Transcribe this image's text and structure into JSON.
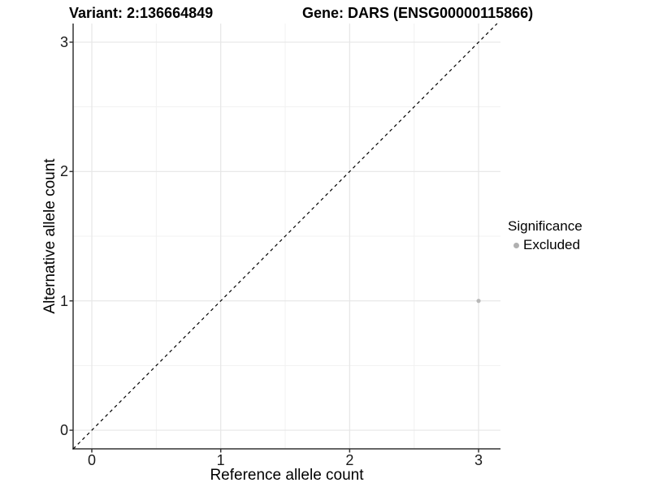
{
  "header": {
    "variant_title": "Variant: 2:136664849",
    "gene_title": "Gene: DARS (ENSG00000115866)"
  },
  "colors": {
    "background": "#ffffff",
    "grid_major": "#e6e6e6",
    "grid_minor": "#f1f1f1",
    "axis_line": "#333333",
    "tick_mark": "#333333",
    "tick_label": "#1a1a1a",
    "identity_line": "#000000",
    "point": "#b8b8b8"
  },
  "chart_data": {
    "type": "scatter",
    "title": "",
    "xlabel": "Reference allele count",
    "ylabel": "Alternative allele count",
    "x_ticks": [
      0,
      1,
      2,
      3
    ],
    "y_ticks": [
      0,
      1,
      2,
      3
    ],
    "x_minor_ticks": [
      0.5,
      1.5,
      2.5
    ],
    "y_minor_ticks": [
      0.5,
      1.5,
      2.5
    ],
    "xlim": [
      -0.145,
      3.17
    ],
    "ylim": [
      -0.144,
      3.144
    ],
    "grid": true,
    "series": [
      {
        "name": "Excluded",
        "color": "#b8b8b8",
        "points": [
          {
            "x": 3,
            "y": 1
          }
        ]
      }
    ],
    "identity_line": {
      "style": "dashed",
      "color": "#000000",
      "from": -0.144,
      "to": 3.144
    },
    "legend": {
      "position": "right",
      "title": "Significance",
      "items": [
        {
          "label": "Excluded",
          "color": "#b0b0b0"
        }
      ]
    }
  }
}
